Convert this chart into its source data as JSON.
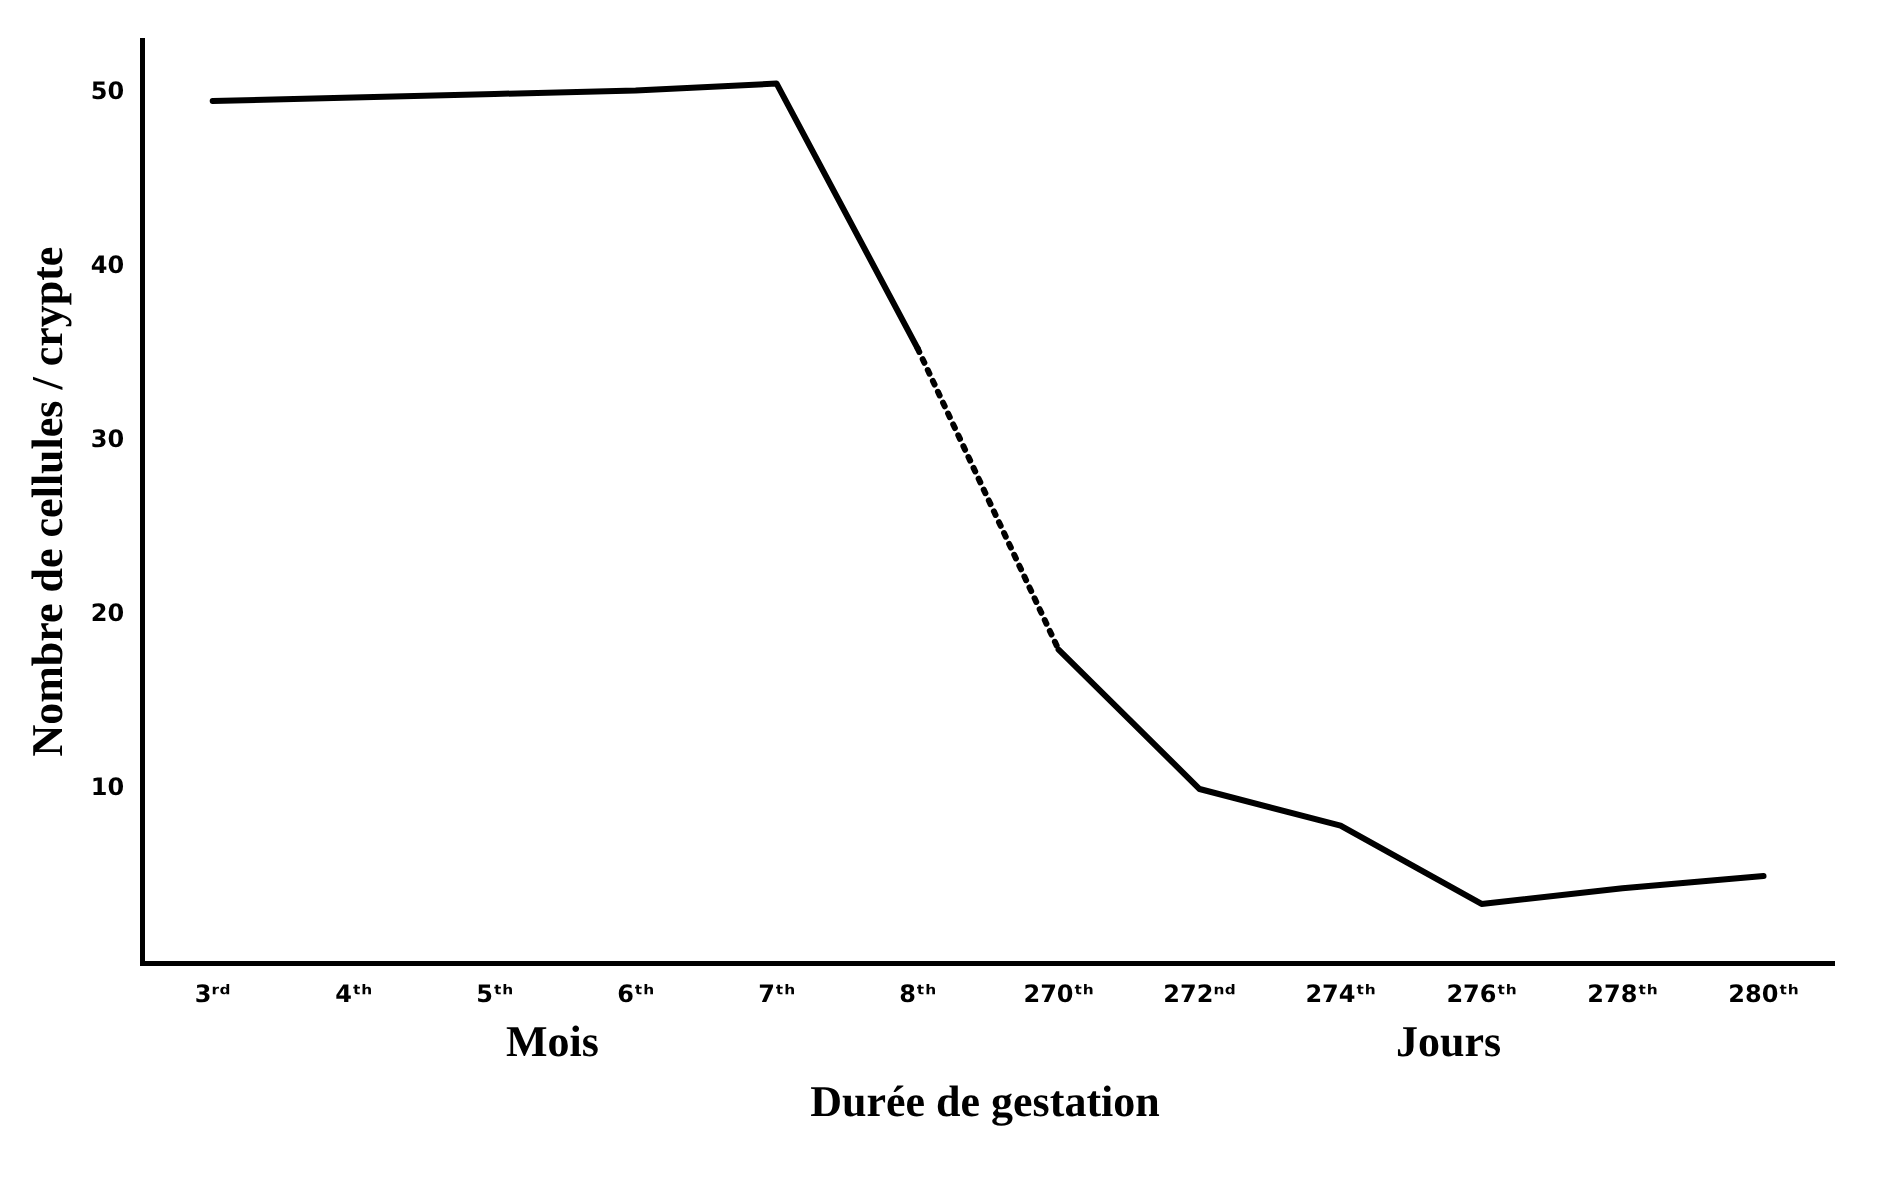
{
  "chart_data": {
    "type": "line",
    "xlabel": "Durée de gestation",
    "ylabel": "Nombre de cellules / crypte",
    "categories": [
      "3ʳᵈ",
      "4ᵗʰ",
      "5ᵗʰ",
      "6ᵗʰ",
      "7ᵗʰ",
      "8ᵗʰ",
      "270ᵗʰ",
      "272ⁿᵈ",
      "274ᵗʰ",
      "276ᵗʰ",
      "278ᵗʰ",
      "280ᵗʰ"
    ],
    "series": [
      {
        "color": "#000000",
        "line_style": "solid",
        "values": [
          49.5,
          49.7,
          49.9,
          50.1,
          50.5,
          35.3,
          null,
          null,
          null,
          null,
          null,
          null
        ]
      },
      {
        "color": "#000000",
        "line_style": "dotted",
        "values": [
          null,
          null,
          null,
          null,
          null,
          35.3,
          18,
          null,
          null,
          null,
          null,
          null
        ]
      },
      {
        "color": "#000000",
        "line_style": "solid",
        "values": [
          null,
          null,
          null,
          null,
          null,
          null,
          18,
          10,
          7.9,
          3.4,
          4.3,
          5
        ]
      }
    ],
    "ylim": [
      0,
      53
    ],
    "yticks": [
      10,
      20,
      30,
      40,
      50
    ],
    "grid": false,
    "legend": false,
    "marker": "none",
    "annotations": [
      "Mois",
      "Jours"
    ]
  }
}
